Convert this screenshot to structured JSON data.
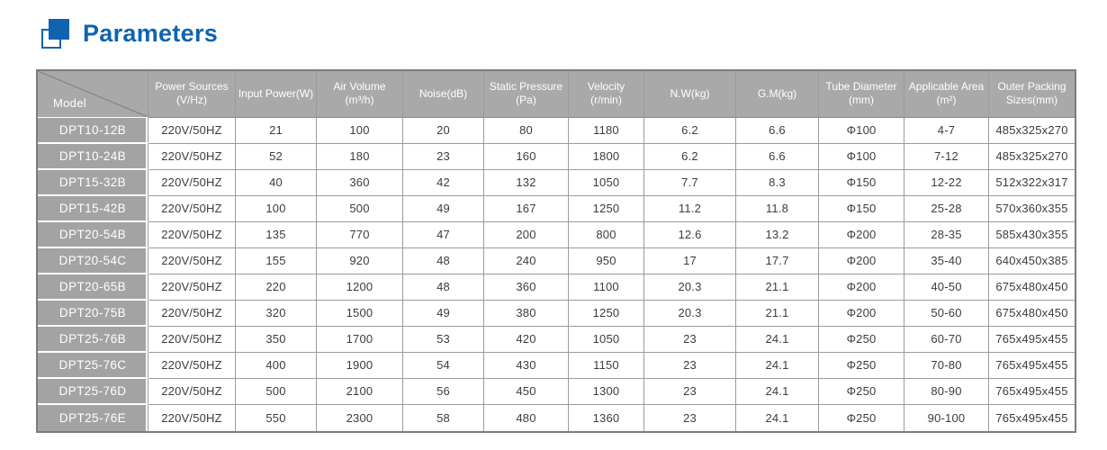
{
  "header": {
    "title": "Parameters",
    "icon": "overlapping-squares-icon",
    "accent_color": "#0f63b0"
  },
  "table": {
    "colors": {
      "header_bg": "#a9a9a9",
      "model_cell_bg": "#a3a3a3",
      "outer_border": "#7c7c7c",
      "grid_line": "#9b9b9b",
      "header_text": "#ffffff",
      "body_text": "#3c3c3c"
    },
    "columns": [
      {
        "label": "Model"
      },
      {
        "label": "Power Sources\n(V/Hz)"
      },
      {
        "label": "Input Power(W)"
      },
      {
        "label": "Air Volume\n(m³/h)"
      },
      {
        "label": "Noise(dB)"
      },
      {
        "label": "Static Pressure\n(Pa)"
      },
      {
        "label": "Velocity\n(r/min)"
      },
      {
        "label": "N.W(kg)"
      },
      {
        "label": "G.M(kg)"
      },
      {
        "label": "Tube Diameter\n(mm)"
      },
      {
        "label": "Applicable Area\n(m²)"
      },
      {
        "label": "Outer Packing\nSizes(mm)"
      }
    ],
    "rows": [
      {
        "cells": [
          "DPT10-12B",
          "220V/50HZ",
          "21",
          "100",
          "20",
          "80",
          "1180",
          "6.2",
          "6.6",
          "Φ100",
          "4-7",
          "485x325x270"
        ]
      },
      {
        "cells": [
          "DPT10-24B",
          "220V/50HZ",
          "52",
          "180",
          "23",
          "160",
          "1800",
          "6.2",
          "6.6",
          "Φ100",
          "7-12",
          "485x325x270"
        ]
      },
      {
        "cells": [
          "DPT15-32B",
          "220V/50HZ",
          "40",
          "360",
          "42",
          "132",
          "1050",
          "7.7",
          "8.3",
          "Φ150",
          "12-22",
          "512x322x317"
        ]
      },
      {
        "cells": [
          "DPT15-42B",
          "220V/50HZ",
          "100",
          "500",
          "49",
          "167",
          "1250",
          "11.2",
          "11.8",
          "Φ150",
          "25-28",
          "570x360x355"
        ]
      },
      {
        "cells": [
          "DPT20-54B",
          "220V/50HZ",
          "135",
          "770",
          "47",
          "200",
          "800",
          "12.6",
          "13.2",
          "Φ200",
          "28-35",
          "585x430x355"
        ]
      },
      {
        "cells": [
          "DPT20-54C",
          "220V/50HZ",
          "155",
          "920",
          "48",
          "240",
          "950",
          "17",
          "17.7",
          "Φ200",
          "35-40",
          "640x450x385"
        ]
      },
      {
        "cells": [
          "DPT20-65B",
          "220V/50HZ",
          "220",
          "1200",
          "48",
          "360",
          "1100",
          "20.3",
          "21.1",
          "Φ200",
          "40-50",
          "675x480x450"
        ]
      },
      {
        "cells": [
          "DPT20-75B",
          "220V/50HZ",
          "320",
          "1500",
          "49",
          "380",
          "1250",
          "20.3",
          "21.1",
          "Φ200",
          "50-60",
          "675x480x450"
        ]
      },
      {
        "cells": [
          "DPT25-76B",
          "220V/50HZ",
          "350",
          "1700",
          "53",
          "420",
          "1050",
          "23",
          "24.1",
          "Φ250",
          "60-70",
          "765x495x455"
        ]
      },
      {
        "cells": [
          "DPT25-76C",
          "220V/50HZ",
          "400",
          "1900",
          "54",
          "430",
          "1150",
          "23",
          "24.1",
          "Φ250",
          "70-80",
          "765x495x455"
        ]
      },
      {
        "cells": [
          "DPT25-76D",
          "220V/50HZ",
          "500",
          "2100",
          "56",
          "450",
          "1300",
          "23",
          "24.1",
          "Φ250",
          "80-90",
          "765x495x455"
        ]
      },
      {
        "cells": [
          "DPT25-76E",
          "220V/50HZ",
          "550",
          "2300",
          "58",
          "480",
          "1360",
          "23",
          "24.1",
          "Φ250",
          "90-100",
          "765x495x455"
        ]
      }
    ]
  }
}
